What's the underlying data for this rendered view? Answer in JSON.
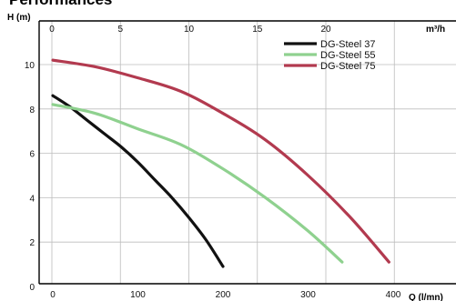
{
  "title": "Performances",
  "chart_data": {
    "type": "line",
    "ylabel": "H (m)",
    "xlabel": "Q (l/mn)",
    "x2label": "m³/h",
    "xlim": [
      0,
      400
    ],
    "ylim": [
      0,
      11
    ],
    "x2lim": [
      0,
      24
    ],
    "x_ticks": [
      0,
      100,
      200,
      300,
      400
    ],
    "x2_ticks": [
      0,
      5,
      10,
      15,
      20
    ],
    "y_ticks": [
      0,
      2,
      4,
      6,
      8,
      10
    ],
    "grid": true,
    "legend_position": "top-right",
    "series": [
      {
        "name": "DG-Steel 37",
        "color": "#111111",
        "x": [
          0,
          20,
          40,
          60,
          80,
          100,
          120,
          140,
          160,
          180,
          200
        ],
        "y": [
          8.6,
          8.1,
          7.5,
          6.9,
          6.3,
          5.6,
          4.8,
          4.0,
          3.1,
          2.1,
          0.9
        ]
      },
      {
        "name": "DG-Steel 55",
        "color": "#8fd18f",
        "x": [
          0,
          50,
          100,
          150,
          200,
          250,
          300,
          340
        ],
        "y": [
          8.2,
          7.8,
          7.1,
          6.4,
          5.3,
          4.0,
          2.5,
          1.1
        ]
      },
      {
        "name": "DG-Steel 75",
        "color": "#b23a4f",
        "x": [
          0,
          50,
          100,
          150,
          200,
          250,
          300,
          350,
          395
        ],
        "y": [
          10.2,
          9.9,
          9.4,
          8.8,
          7.8,
          6.6,
          5.0,
          3.1,
          1.1
        ]
      }
    ]
  }
}
